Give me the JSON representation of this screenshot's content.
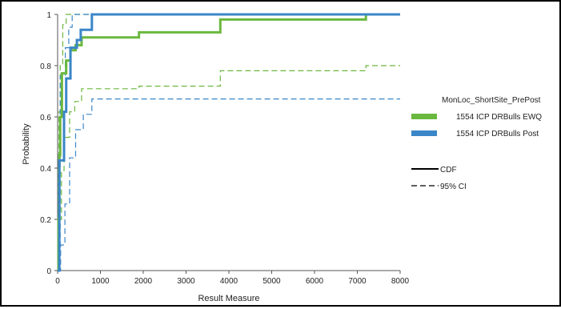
{
  "chart_data": {
    "type": "line",
    "title": "",
    "xlabel": "Result Measure",
    "ylabel": "Probability",
    "xlim": [
      0,
      8000
    ],
    "ylim": [
      0,
      1
    ],
    "xticks": [
      "0",
      "1000",
      "2000",
      "3000",
      "4000",
      "5000",
      "6000",
      "7000",
      "8000"
    ],
    "yticks": [
      "0",
      "0.2",
      "0.4",
      "0.6",
      "0.8",
      "1"
    ],
    "grid": false,
    "legend": {
      "title": "MonLoc_ShortSite_PrePost",
      "placement": "right",
      "series_labels": [
        "1554 ICP DRBulls EWQ",
        "1554 ICP DRBulls Post"
      ],
      "style_labels": [
        "CDF",
        "95% CI"
      ]
    },
    "series": [
      {
        "name": "1554 ICP DRBulls EWQ",
        "color": "#6ab83f",
        "cdf": [
          [
            0,
            0
          ],
          [
            20,
            0.2
          ],
          [
            40,
            0.45
          ],
          [
            60,
            0.6
          ],
          [
            100,
            0.77
          ],
          [
            200,
            0.82
          ],
          [
            300,
            0.86
          ],
          [
            420,
            0.88
          ],
          [
            560,
            0.91
          ],
          [
            1900,
            0.93
          ],
          [
            3800,
            0.98
          ],
          [
            7200,
            1
          ],
          [
            8000,
            1
          ]
        ],
        "ci_upper": [
          [
            0,
            0
          ],
          [
            15,
            0.4
          ],
          [
            30,
            0.62
          ],
          [
            60,
            0.8
          ],
          [
            120,
            0.96
          ],
          [
            200,
            1
          ],
          [
            8000,
            1
          ]
        ],
        "ci_lower": [
          [
            0,
            0
          ],
          [
            40,
            0.2
          ],
          [
            90,
            0.39
          ],
          [
            150,
            0.52
          ],
          [
            280,
            0.62
          ],
          [
            400,
            0.66
          ],
          [
            560,
            0.71
          ],
          [
            1900,
            0.72
          ],
          [
            3800,
            0.78
          ],
          [
            7200,
            0.8
          ],
          [
            8000,
            0.8
          ]
        ]
      },
      {
        "name": "1554 ICP DRBulls Post",
        "color": "#3a86c8",
        "cdf": [
          [
            0,
            0
          ],
          [
            40,
            0.43
          ],
          [
            150,
            0.62
          ],
          [
            200,
            0.75
          ],
          [
            300,
            0.87
          ],
          [
            450,
            0.9
          ],
          [
            540,
            0.94
          ],
          [
            800,
            1
          ],
          [
            8000,
            1
          ]
        ],
        "ci_upper": [
          [
            0,
            0
          ],
          [
            60,
            0.76
          ],
          [
            180,
            0.87
          ],
          [
            260,
            0.95
          ],
          [
            340,
            1
          ],
          [
            8000,
            1
          ]
        ],
        "ci_lower": [
          [
            0,
            0
          ],
          [
            70,
            0.1
          ],
          [
            170,
            0.26
          ],
          [
            280,
            0.44
          ],
          [
            420,
            0.55
          ],
          [
            600,
            0.61
          ],
          [
            800,
            0.67
          ],
          [
            8000,
            0.67
          ]
        ]
      }
    ]
  }
}
